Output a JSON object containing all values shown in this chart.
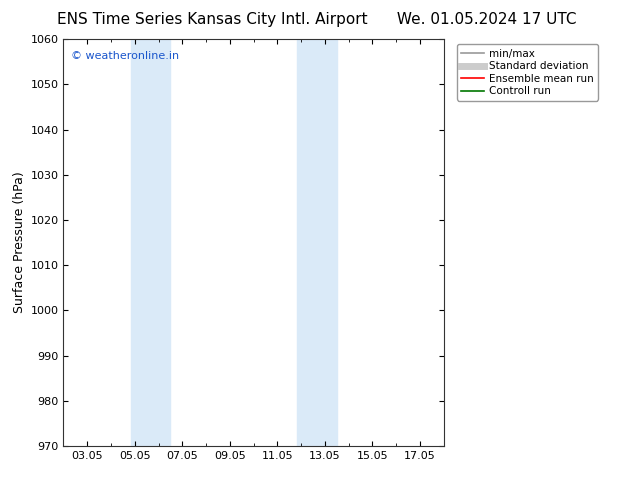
{
  "title": "ENS Time Series Kansas City Intl. Airport      We. 01.05.2024 17 UTC",
  "ylabel": "Surface Pressure (hPa)",
  "ylim": [
    970,
    1060
  ],
  "yticks": [
    970,
    980,
    990,
    1000,
    1010,
    1020,
    1030,
    1040,
    1050,
    1060
  ],
  "xlim": [
    1,
    17
  ],
  "xtick_labels": [
    "03.05",
    "05.05",
    "07.05",
    "09.05",
    "11.05",
    "13.05",
    "15.05",
    "17.05"
  ],
  "xtick_positions": [
    2,
    4,
    6,
    8,
    10,
    12,
    14,
    16
  ],
  "shaded_regions": [
    {
      "start": 3.83,
      "end": 5.5,
      "color": "#daeaf8"
    },
    {
      "start": 10.83,
      "end": 12.5,
      "color": "#daeaf8"
    }
  ],
  "watermark_text": "© weatheronline.in",
  "watermark_color": "#1a56cc",
  "background_color": "#ffffff",
  "legend_items": [
    {
      "label": "min/max",
      "color": "#999999",
      "lw": 1.2,
      "ls": "-"
    },
    {
      "label": "Standard deviation",
      "color": "#cccccc",
      "lw": 5,
      "ls": "-"
    },
    {
      "label": "Ensemble mean run",
      "color": "#ff0000",
      "lw": 1.2,
      "ls": "-"
    },
    {
      "label": "Controll run",
      "color": "#007700",
      "lw": 1.2,
      "ls": "-"
    }
  ],
  "grid_color": "#cccccc",
  "title_fontsize": 11,
  "ylabel_fontsize": 9,
  "tick_fontsize": 8,
  "watermark_fontsize": 8
}
